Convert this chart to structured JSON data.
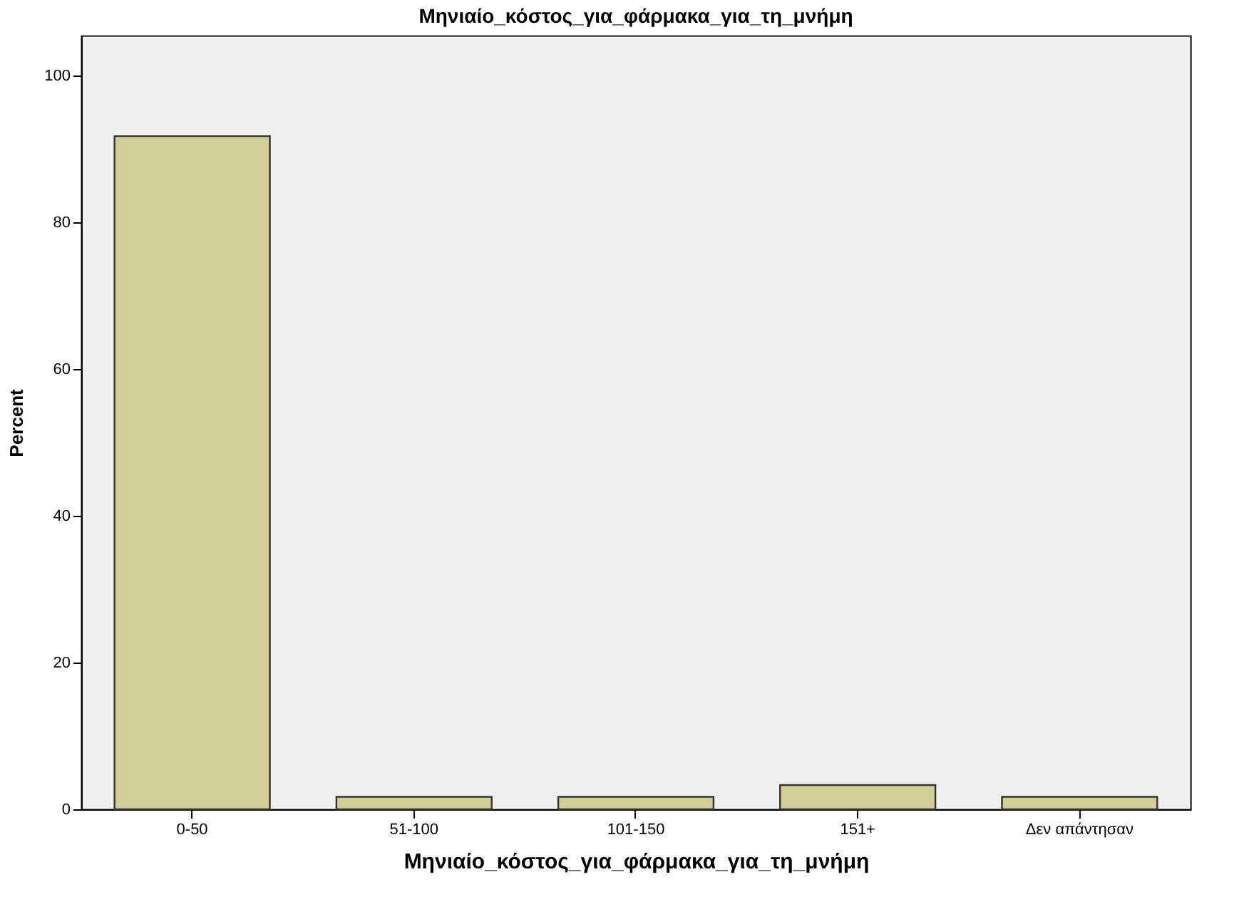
{
  "chart_data": {
    "type": "bar",
    "title": "Μηνιαίο_κόστος_για_φάρμακα_για_τη_μνήμη",
    "xlabel": "Μηνιαίο_κόστος_για_φάρμακα_για_τη_μνήμη",
    "ylabel": "Percent",
    "categories": [
      "0-50",
      "51-100",
      "101-150",
      "151+",
      "Δεν απάντησαν"
    ],
    "values": [
      91.7,
      1.7,
      1.7,
      3.3,
      1.7
    ],
    "color": "#d3ce97",
    "ylim": [
      0,
      105.4
    ],
    "yticks": [
      0,
      20,
      40,
      60,
      80,
      100
    ],
    "grid": false
  }
}
